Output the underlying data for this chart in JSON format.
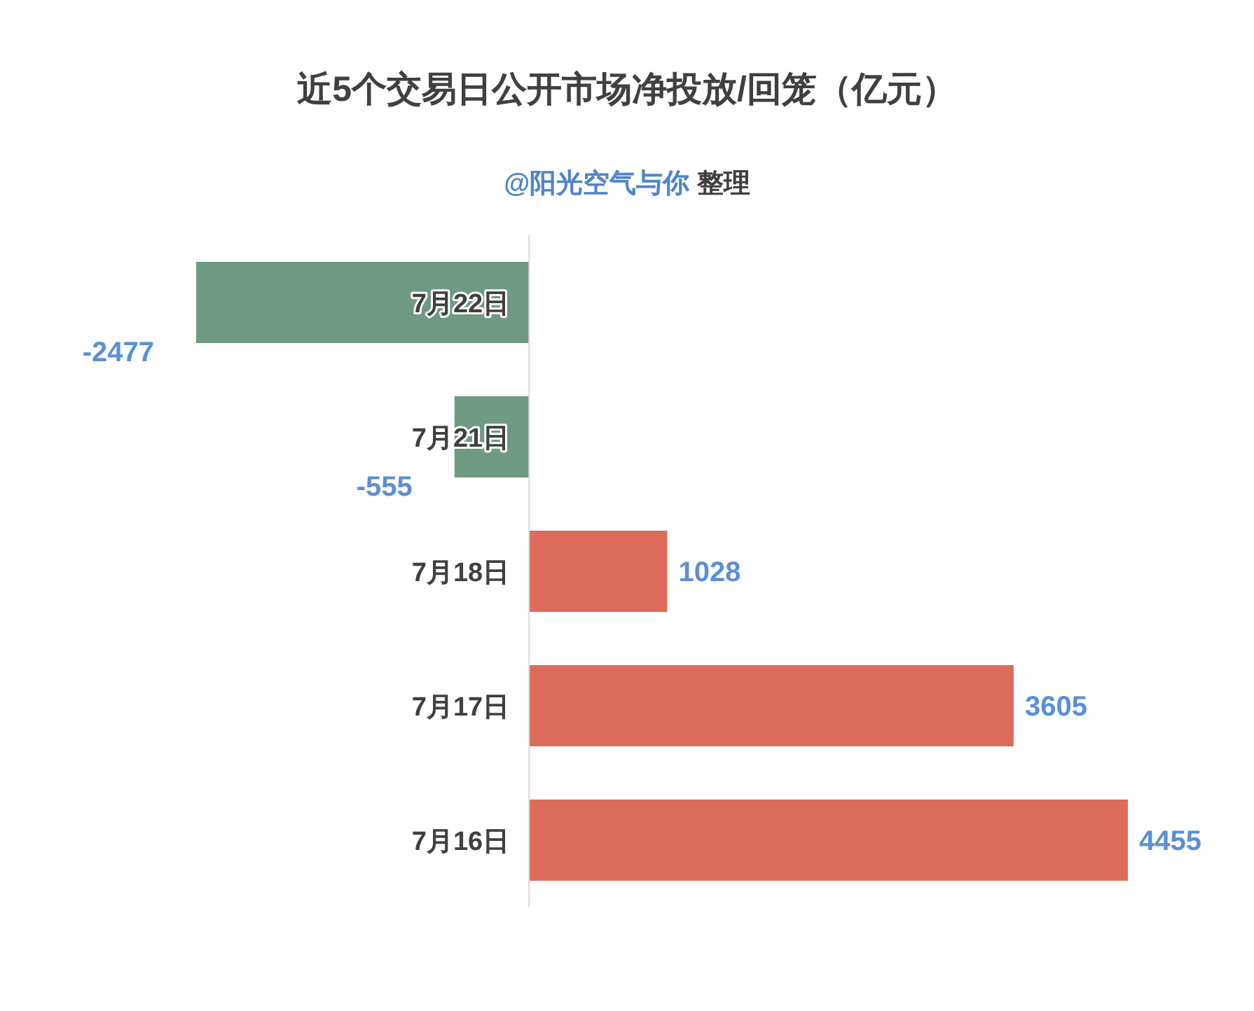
{
  "chart_data": {
    "type": "bar",
    "orientation": "horizontal",
    "title": "近5个交易日公开市场净投放/回笼（亿元）",
    "subtitle": "@阳光空气与你 整理",
    "categories": [
      "7月22日",
      "7月21日",
      "7月18日",
      "7月17日",
      "7月16日"
    ],
    "values": [
      -2477,
      -555,
      1028,
      3605,
      4455
    ],
    "colors": [
      "#6e9a84",
      "#6e9a84",
      "#dd6b5c",
      "#dd6b5c",
      "#dd6b5c"
    ],
    "data_labels": true
  }
}
